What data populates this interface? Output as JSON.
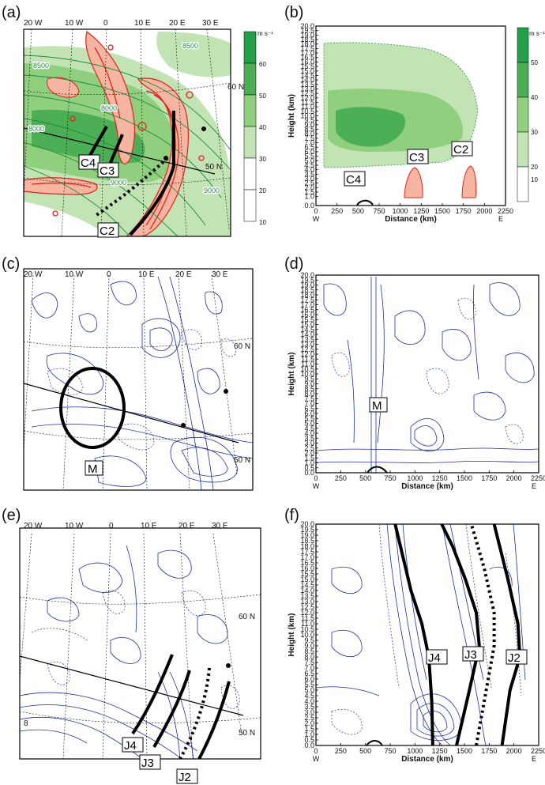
{
  "panels": [
    {
      "letter": "(a)",
      "lon_labels": [
        "20 W",
        "10 W",
        "0",
        "10 E",
        "20 E",
        "30 E"
      ],
      "lat_labels": [
        "60 N",
        "50 N"
      ],
      "contour_labels": [
        "8500",
        "8500",
        "8000",
        "8000",
        "9000",
        "9000"
      ],
      "tags": [
        "C4",
        "C3",
        "C2"
      ]
    },
    {
      "letter": "(b)",
      "tags": [
        "C4",
        "C3",
        "C2"
      ]
    },
    {
      "letter": "(c)",
      "lon_labels": [
        "20 W",
        "10 W",
        "0",
        "10 E",
        "20 E",
        "30 E"
      ],
      "lat_labels": [
        "60 N",
        "50 N"
      ],
      "tags": [
        "M"
      ]
    },
    {
      "letter": "(d)",
      "tags": [
        "M"
      ]
    },
    {
      "letter": "(e)",
      "lon_labels": [
        "20 W",
        "10 W",
        "0",
        "10 E",
        "20 E",
        "30 E"
      ],
      "lat_labels": [
        "60 N",
        "50 N"
      ],
      "tags": [
        "J4",
        "J3",
        "J2"
      ],
      "edge_label": "8"
    },
    {
      "letter": "(f)",
      "tags": [
        "J4",
        "J3",
        "J2"
      ]
    }
  ],
  "colorbar_a": {
    "unit": "m s⁻¹",
    "labels": [
      "60",
      "50",
      "40",
      "30",
      "20",
      "10"
    ]
  },
  "colorbar_b": {
    "unit": "m s⁻¹",
    "labels": [
      "50",
      "40",
      "30",
      "20",
      "10"
    ]
  },
  "colors": {
    "wind_light": "#c2e3b4",
    "wind_mid": "#8fcf7e",
    "wind_dark": "#4caf55",
    "wind_darkest": "#22a04a",
    "pv_fill": "#f5b5a0",
    "pv_line": "#e2231a",
    "contour_blue": "#1f2f9c",
    "contour_green": "#1e8a3c"
  },
  "chart_data": [
    {
      "type": "heatmap",
      "panel": "(a)",
      "title": "",
      "variable": "wind speed (shaded), m s⁻¹",
      "lon_ticks": [
        "20 W",
        "10 W",
        "0",
        "10 E",
        "20 E",
        "30 E"
      ],
      "lat_ticks": [
        "60 N",
        "50 N"
      ],
      "colorbar_levels": [
        10,
        20,
        30,
        40,
        50,
        60
      ],
      "labels": [
        "C4",
        "C3",
        "C2"
      ]
    },
    {
      "type": "heatmap",
      "panel": "(b)",
      "xlabel": "Distance (km)",
      "ylabel": "Height (km)",
      "x_ticks": [
        "0",
        "250",
        "500",
        "750",
        "1000",
        "1250",
        "1500",
        "1750",
        "2000",
        "2250"
      ],
      "y_ticks": [
        "0.0",
        "1.0",
        "1.5",
        "2.0",
        "2.5",
        "3.0",
        "3.5",
        "4.0",
        "4.5",
        "5.0",
        "5.5",
        "6.0",
        "6.5",
        "7.0",
        "7.5",
        "8.0",
        "8.5",
        "9.0",
        "9.5",
        "10.0",
        "10.5",
        "11.0",
        "11.5",
        "12.0",
        "12.5",
        "13.0",
        "13.5",
        "14.0",
        "14.5",
        "15.0",
        "15.5",
        "16.0",
        "16.5",
        "17.0",
        "17.5",
        "18.0",
        "18.5",
        "19.0",
        "19.5",
        "20.0"
      ],
      "xlim": [
        0,
        2250
      ],
      "ylim": [
        0,
        20
      ],
      "x_end_labels": [
        "W",
        "E"
      ],
      "colorbar_levels": [
        10,
        20,
        30,
        40,
        50
      ],
      "labels": [
        "C4",
        "C3",
        "C2"
      ]
    },
    {
      "type": "heatmap",
      "panel": "(c)",
      "variable": "contours",
      "lon_ticks": [
        "20 W",
        "10 W",
        "0",
        "10 E",
        "20 E",
        "30 E"
      ],
      "lat_ticks": [
        "60 N",
        "50 N"
      ],
      "labels": [
        "M"
      ]
    },
    {
      "type": "heatmap",
      "panel": "(d)",
      "xlabel": "Distance (km)",
      "ylabel": "Height (km)",
      "x_ticks": [
        "0",
        "250",
        "500",
        "750",
        "1000",
        "1250",
        "1500",
        "1750",
        "2000",
        "2250"
      ],
      "y_ticks": [
        "0.0",
        "0.5",
        "1.0",
        "1.5",
        "2.0",
        "2.5",
        "3.0",
        "3.5",
        "4.0",
        "4.5",
        "5.0",
        "5.5",
        "6.0",
        "6.5",
        "7.0",
        "7.5",
        "8.0",
        "8.5",
        "9.0",
        "9.5",
        "10.0",
        "10.5",
        "11.0",
        "11.5",
        "12.0",
        "12.5",
        "13.0",
        "13.5",
        "14.0",
        "14.5",
        "15.0",
        "15.5",
        "16.0",
        "16.5",
        "17.0",
        "17.5",
        "18.0",
        "18.5",
        "19.0",
        "19.5",
        "20.0"
      ],
      "xlim": [
        0,
        2250
      ],
      "ylim": [
        0,
        20
      ],
      "x_end_labels": [
        "W",
        "E"
      ],
      "labels": [
        "M"
      ]
    },
    {
      "type": "heatmap",
      "panel": "(e)",
      "variable": "contours",
      "lon_ticks": [
        "20 W",
        "10 W",
        "0",
        "10 E",
        "20 E",
        "30 E"
      ],
      "lat_ticks": [
        "60 N",
        "50 N"
      ],
      "labels": [
        "J4",
        "J3",
        "J2"
      ]
    },
    {
      "type": "heatmap",
      "panel": "(f)",
      "xlabel": "Distance (km)",
      "ylabel": "Height (km)",
      "x_ticks": [
        "0",
        "250",
        "500",
        "750",
        "1000",
        "1250",
        "1500",
        "1750",
        "2000",
        "2250"
      ],
      "y_ticks": [
        "0.0",
        "0.5",
        "1.0",
        "1.5",
        "2.0",
        "2.5",
        "3.0",
        "3.5",
        "4.0",
        "4.5",
        "5.0",
        "5.5",
        "6.0",
        "6.5",
        "7.0",
        "7.5",
        "8.0",
        "8.5",
        "9.0",
        "9.5",
        "10.0",
        "10.5",
        "11.0",
        "11.5",
        "12.0",
        "12.5",
        "13.0",
        "13.5",
        "14.0",
        "14.5",
        "15.0",
        "15.5",
        "16.0",
        "16.5",
        "17.0",
        "17.5",
        "18.0",
        "18.5",
        "19.0",
        "19.5",
        "20.0"
      ],
      "xlim": [
        0,
        2250
      ],
      "ylim": [
        0,
        20
      ],
      "x_end_labels": [
        "W",
        "E"
      ],
      "labels": [
        "J4",
        "J3",
        "J2"
      ],
      "line_series": [
        {
          "label": "J4",
          "style": "solid",
          "x": [
            1180,
            1170,
            1140,
            1070,
            960,
            880,
            800
          ],
          "y": [
            0.0,
            4.0,
            8.0,
            11.0,
            14.0,
            17.0,
            20.0
          ]
        },
        {
          "label": "J3",
          "style": "solid",
          "x": [
            1420,
            1550,
            1650,
            1620,
            1510,
            1380,
            1270
          ],
          "y": [
            0.0,
            5.0,
            9.0,
            12.0,
            15.0,
            18.0,
            20.0
          ]
        },
        {
          "label": "J2",
          "style": "dotted",
          "x": [
            1620,
            1720,
            1800,
            1800,
            1700,
            1570
          ],
          "y": [
            0.0,
            5.0,
            9.0,
            12.0,
            16.0,
            20.0
          ]
        },
        {
          "label": "J2",
          "style": "solid",
          "x": [
            1880,
            1960,
            2060,
            2040,
            1940,
            1800
          ],
          "y": [
            0.0,
            5.0,
            8.0,
            11.0,
            15.0,
            20.0
          ]
        }
      ]
    }
  ]
}
